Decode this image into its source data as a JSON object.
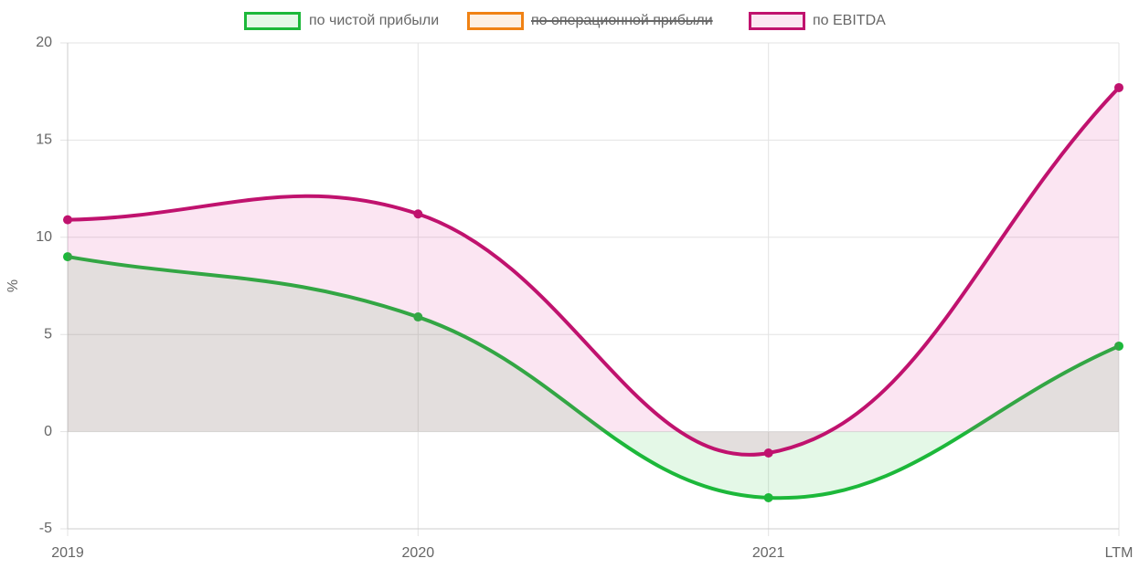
{
  "chart_data": {
    "type": "line",
    "categories": [
      "2019",
      "2020",
      "2021",
      "LTM"
    ],
    "series": [
      {
        "name": "по чистой прибыли",
        "color": "#1cb83a",
        "fill": "rgba(30,200,60,0.12)",
        "values": [
          9.0,
          5.9,
          -3.4,
          4.4
        ]
      },
      {
        "name": "по операционной прибыли",
        "color": "#f08214",
        "fill": "rgba(240,130,20,0.12)",
        "hidden": true,
        "values": [
          null,
          null,
          null,
          null
        ]
      },
      {
        "name": "по EBITDA",
        "color": "#c0126e",
        "fill": "rgba(220,40,150,0.12)",
        "values": [
          10.9,
          11.2,
          -1.1,
          17.7
        ]
      }
    ],
    "y_label": "%",
    "ylim": [
      -5,
      20
    ],
    "yticks": [
      -5,
      0,
      5,
      10,
      15,
      20
    ],
    "grid": true,
    "legend": "top"
  }
}
